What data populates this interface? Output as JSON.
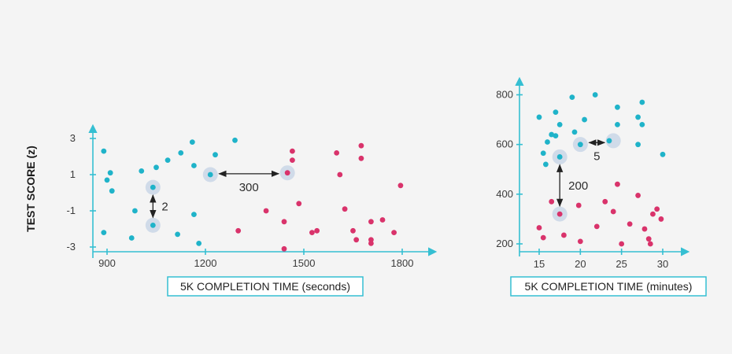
{
  "chart_data": [
    {
      "type": "scatter",
      "title": "",
      "xlabel": "5K COMPLETION TIME (seconds)",
      "ylabel": "TEST SCORE (z)",
      "xlim": [
        870,
        1820
      ],
      "ylim": [
        -3.3,
        3.9
      ],
      "xticks": [
        900,
        1200,
        1500,
        1800
      ],
      "xtick_labels": [
        "900",
        "1200",
        "1500",
        "1800"
      ],
      "yticks": [
        3,
        1,
        -1,
        -3
      ],
      "ytick_labels": [
        "3",
        "1",
        "-1",
        "-3"
      ],
      "series": [
        {
          "color": "#1fb3c9",
          "points": [
            [
              890,
              2.3
            ],
            [
              890,
              -2.2
            ],
            [
              900,
              0.7
            ],
            [
              910,
              1.1
            ],
            [
              915,
              0.1
            ],
            [
              975,
              -2.5
            ],
            [
              985,
              -1.0
            ],
            [
              1005,
              1.2
            ],
            [
              1040,
              0.3
            ],
            [
              1040,
              -1.8
            ],
            [
              1050,
              1.4
            ],
            [
              1085,
              1.8
            ],
            [
              1115,
              -2.3
            ],
            [
              1125,
              2.2
            ],
            [
              1160,
              2.8
            ],
            [
              1165,
              1.5
            ],
            [
              1165,
              -1.2
            ],
            [
              1180,
              -2.8
            ],
            [
              1215,
              1.0
            ],
            [
              1230,
              2.1
            ],
            [
              1290,
              2.9
            ]
          ]
        },
        {
          "color": "#d9336b",
          "points": [
            [
              1300,
              -2.1
            ],
            [
              1385,
              -1.0
            ],
            [
              1440,
              -1.6
            ],
            [
              1440,
              -3.1
            ],
            [
              1450,
              1.1
            ],
            [
              1465,
              2.3
            ],
            [
              1465,
              1.8
            ],
            [
              1485,
              -0.6
            ],
            [
              1525,
              -2.2
            ],
            [
              1540,
              -2.1
            ],
            [
              1600,
              2.2
            ],
            [
              1610,
              1.0
            ],
            [
              1625,
              -0.9
            ],
            [
              1650,
              -2.1
            ],
            [
              1660,
              -2.6
            ],
            [
              1675,
              2.6
            ],
            [
              1675,
              1.9
            ],
            [
              1705,
              -1.6
            ],
            [
              1705,
              -2.6
            ],
            [
              1705,
              -2.8
            ],
            [
              1740,
              -1.5
            ],
            [
              1775,
              -2.2
            ],
            [
              1795,
              0.4
            ]
          ]
        }
      ],
      "annotations": [
        {
          "text": "2",
          "from": [
            1040,
            0.3
          ],
          "to": [
            1040,
            -1.8
          ],
          "direction": "vertical"
        },
        {
          "text": "300",
          "from": [
            1215,
            1.0
          ],
          "to": [
            1450,
            1.1
          ],
          "direction": "horizontal"
        }
      ]
    },
    {
      "type": "scatter",
      "title": "",
      "xlabel": "5K COMPLETION TIME (minutes)",
      "ylabel": "",
      "xlim": [
        13.5,
        32
      ],
      "ylim": [
        180,
        840
      ],
      "xticks": [
        15,
        20,
        25,
        30
      ],
      "xtick_labels": [
        "15",
        "20",
        "25",
        "30"
      ],
      "yticks": [
        800,
        600,
        400,
        200
      ],
      "ytick_labels": [
        "800",
        "600",
        "400",
        "200"
      ],
      "series": [
        {
          "color": "#1fb3c9",
          "points": [
            [
              15,
              710
            ],
            [
              15.5,
              565
            ],
            [
              15.8,
              520
            ],
            [
              16,
              610
            ],
            [
              16.5,
              640
            ],
            [
              17,
              730
            ],
            [
              17,
              635
            ],
            [
              17.5,
              550
            ],
            [
              17.5,
              680
            ],
            [
              19,
              790
            ],
            [
              19.3,
              650
            ],
            [
              20,
              600
            ],
            [
              20.5,
              700
            ],
            [
              21.8,
              800
            ],
            [
              23.5,
              615
            ],
            [
              24.5,
              750
            ],
            [
              24.5,
              680
            ],
            [
              27,
              600
            ],
            [
              27,
              710
            ],
            [
              27.5,
              770
            ],
            [
              27.5,
              680
            ],
            [
              30,
              560
            ]
          ]
        },
        {
          "color": "#d9336b",
          "points": [
            [
              15,
              265
            ],
            [
              15.5,
              225
            ],
            [
              16.5,
              370
            ],
            [
              17.5,
              320
            ],
            [
              18,
              235
            ],
            [
              19.8,
              355
            ],
            [
              20,
              210
            ],
            [
              22,
              270
            ],
            [
              23,
              370
            ],
            [
              24,
              330
            ],
            [
              24.5,
              440
            ],
            [
              25,
              200
            ],
            [
              26,
              280
            ],
            [
              27,
              395
            ],
            [
              27.8,
              260
            ],
            [
              28.3,
              220
            ],
            [
              28.5,
              200
            ],
            [
              28.8,
              320
            ],
            [
              29.3,
              340
            ],
            [
              29.8,
              300
            ]
          ]
        }
      ],
      "annotations": [
        {
          "text": "200",
          "from": [
            17.5,
            550
          ],
          "to": [
            17.5,
            320
          ],
          "direction": "vertical"
        },
        {
          "text": "5",
          "from": [
            20,
            600
          ],
          "to": [
            24,
            615
          ],
          "direction": "horizontal"
        }
      ]
    }
  ]
}
